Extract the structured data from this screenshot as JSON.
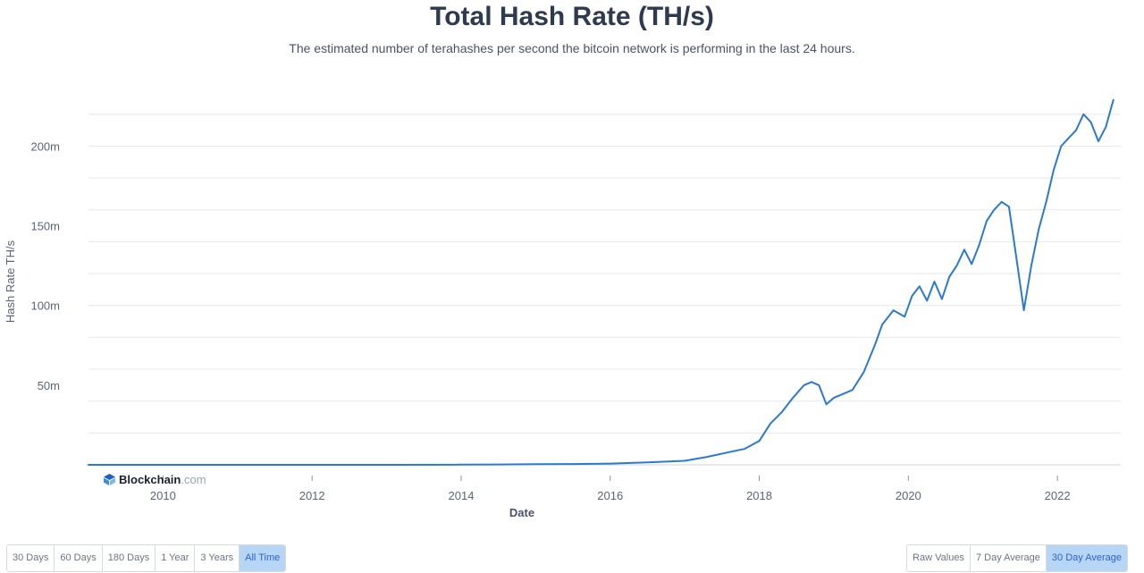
{
  "header": {
    "title": "Total Hash Rate (TH/s)",
    "subtitle": "The estimated number of terahashes per second the bitcoin network is performing in the last 24 hours."
  },
  "logo": {
    "name": "Blockchain",
    "suffix": ".com"
  },
  "range_buttons": [
    {
      "label": "30 Days",
      "active": false
    },
    {
      "label": "60 Days",
      "active": false
    },
    {
      "label": "180 Days",
      "active": false
    },
    {
      "label": "1 Year",
      "active": false
    },
    {
      "label": "3 Years",
      "active": false
    },
    {
      "label": "All Time",
      "active": true
    }
  ],
  "average_buttons": [
    {
      "label": "Raw Values",
      "active": false
    },
    {
      "label": "7 Day Average",
      "active": false
    },
    {
      "label": "30 Day Average",
      "active": true
    }
  ],
  "chart_data": {
    "type": "line",
    "title": "Total Hash Rate (TH/s)",
    "subtitle": "The estimated number of terahashes per second the bitcoin network is performing in the last 24 hours.",
    "xlabel": "Date",
    "ylabel": "Hash Rate TH/s",
    "xlim": [
      2009.0,
      2022.85
    ],
    "ylim": [
      0,
      230000000
    ],
    "x_ticks": [
      2010,
      2012,
      2014,
      2016,
      2018,
      2020,
      2022
    ],
    "x_tick_labels": [
      "2010",
      "2012",
      "2014",
      "2016",
      "2018",
      "2020",
      "2022"
    ],
    "y_ticks": [
      50000000,
      100000000,
      150000000,
      200000000
    ],
    "y_tick_labels": [
      "50m",
      "100m",
      "150m",
      "200m"
    ],
    "grid": true,
    "line_color": "#2a7ad2",
    "series": [
      {
        "x": [
          2009.0,
          2010.0,
          2011.0,
          2012.0,
          2013.0,
          2014.0,
          2014.5,
          2015.0,
          2015.5,
          2016.0,
          2016.5,
          2017.0,
          2017.3,
          2017.6,
          2017.8,
          2018.0,
          2018.15,
          2018.3,
          2018.45,
          2018.6,
          2018.7,
          2018.8,
          2018.9,
          2019.0,
          2019.1,
          2019.25,
          2019.4,
          2019.55,
          2019.65,
          2019.8,
          2019.95,
          2020.05,
          2020.15,
          2020.25,
          2020.35,
          2020.45,
          2020.55,
          2020.65,
          2020.75,
          2020.85,
          2020.95,
          2021.05,
          2021.15,
          2021.25,
          2021.35,
          2021.45,
          2021.55,
          2021.65,
          2021.75,
          2021.85,
          2021.95,
          2022.05,
          2022.15,
          2022.25,
          2022.35,
          2022.45,
          2022.55,
          2022.65,
          2022.75
        ],
        "y": [
          0,
          0,
          0,
          0,
          0,
          100000,
          200000,
          400000,
          500000,
          800000,
          1500000,
          2500000,
          5000000,
          8000000,
          10000000,
          15000000,
          26000000,
          33000000,
          42000000,
          50000000,
          52000000,
          50000000,
          38000000,
          42000000,
          44000000,
          47000000,
          58000000,
          75000000,
          88000000,
          97000000,
          93000000,
          106000000,
          112000000,
          103000000,
          115000000,
          104000000,
          118000000,
          125000000,
          135000000,
          126000000,
          138000000,
          153000000,
          160000000,
          165000000,
          162000000,
          130000000,
          97000000,
          125000000,
          148000000,
          165000000,
          185000000,
          200000000,
          205000000,
          210000000,
          220000000,
          215000000,
          203000000,
          212000000,
          229000000
        ]
      }
    ]
  }
}
